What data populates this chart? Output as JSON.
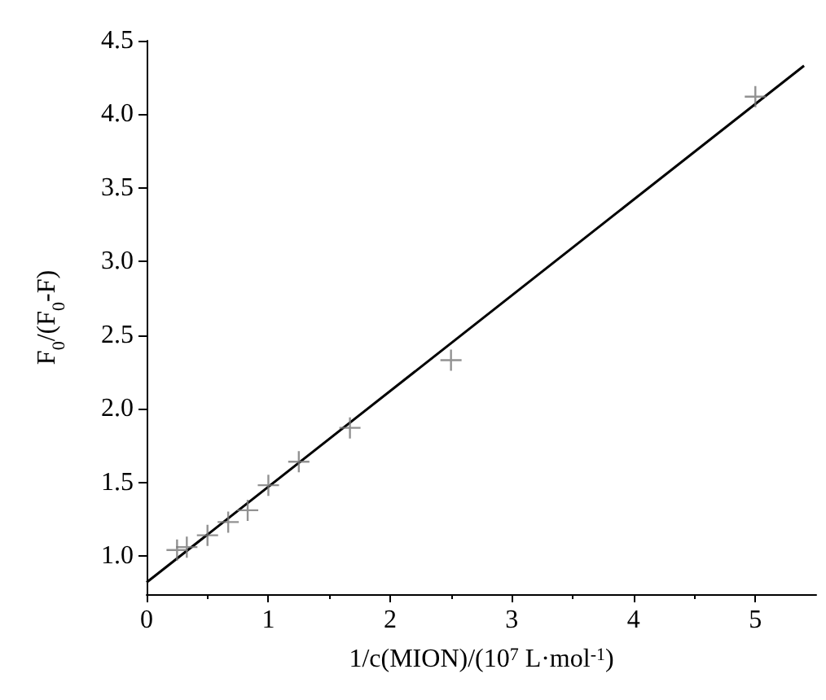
{
  "chart_data": {
    "type": "scatter",
    "xlabel": "1/c(MION)/(10$^{7}$ L·mol$^{-1}$)",
    "ylabel": "F$_{0}$/(F$_{0}$-F)",
    "series": [
      {
        "color": "#777777",
        "marker": "cross",
        "x": [
          0.25,
          0.33,
          0.5,
          0.67,
          0.83,
          1.0,
          1.25,
          1.67,
          2.5,
          5.0
        ],
        "values": [
          1.04,
          1.06,
          1.14,
          1.23,
          1.31,
          1.48,
          1.64,
          1.87,
          2.33,
          4.12
        ]
      },
      {
        "type": "line",
        "color": "#000000",
        "marker": "none",
        "line_style": "solid",
        "x": [
          0,
          5.4
        ],
        "values": [
          0.82,
          4.33
        ]
      }
    ],
    "xlim": [
      0,
      5.5
    ],
    "xticks": [
      0,
      1,
      2,
      3,
      4,
      5
    ],
    "ylim": [
      0.74,
      4.5
    ],
    "yticks": [
      {
        "value": 1,
        "label": "1.0"
      },
      1.5,
      {
        "value": 2,
        "label": "2.0"
      },
      2.5,
      {
        "value": 3,
        "label": "3.0"
      },
      3.5,
      {
        "value": 4,
        "label": "4.0"
      },
      4.5
    ],
    "grid": false
  }
}
